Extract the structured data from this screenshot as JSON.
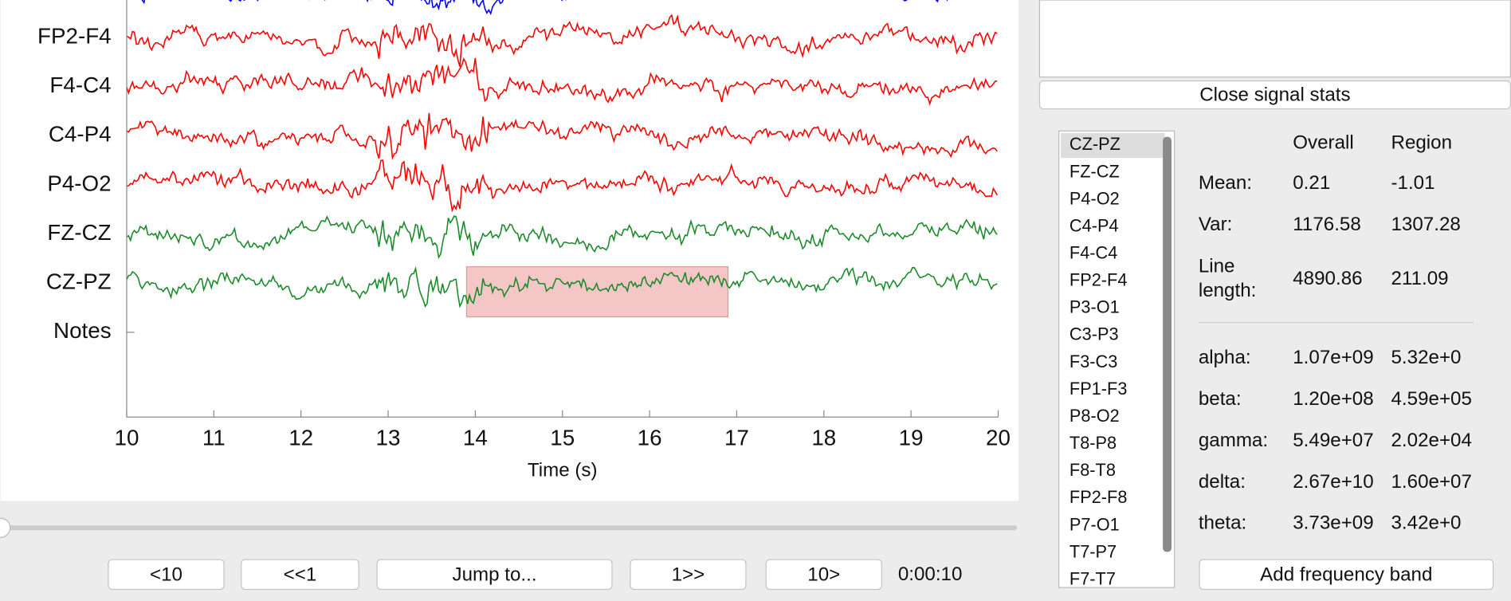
{
  "plot": {
    "channels": [
      {
        "name": "FP2-F4",
        "color": "#ff0000"
      },
      {
        "name": "F4-C4",
        "color": "#ff0000"
      },
      {
        "name": "C4-P4",
        "color": "#ff0000"
      },
      {
        "name": "P4-O2",
        "color": "#ff0000"
      },
      {
        "name": "FZ-CZ",
        "color": "#1a8a2a"
      },
      {
        "name": "CZ-PZ",
        "color": "#1a8a2a"
      },
      {
        "name": "Notes",
        "color": null
      }
    ],
    "top_trace_color": "#0000ff",
    "xlabel": "Time (s)",
    "xlim": [
      10,
      20
    ],
    "xticks": [
      10,
      11,
      12,
      13,
      14,
      15,
      16,
      17,
      18,
      19,
      20
    ],
    "region": [
      13.9,
      16.9
    ],
    "region_color": "#f4c6c6"
  },
  "nav": {
    "buttons": [
      "<10",
      "<<1",
      "Jump to...",
      "1>>",
      "10>"
    ],
    "time": "0:00:10"
  },
  "stats_panel": {
    "close_button": "Close signal stats",
    "channel_list": [
      "CZ-PZ",
      "FZ-CZ",
      "P4-O2",
      "C4-P4",
      "F4-C4",
      "FP2-F4",
      "P3-O1",
      "C3-P3",
      "F3-C3",
      "FP1-F3",
      "P8-O2",
      "T8-P8",
      "F8-T8",
      "FP2-F8",
      "P7-O1",
      "T7-P7",
      "F7-T7"
    ],
    "headers": [
      "Overall",
      "Region"
    ],
    "rows": [
      {
        "label": [
          "Mean:"
        ],
        "overall": "0.21",
        "region": "-1.01"
      },
      {
        "label": [
          "Var:"
        ],
        "overall": "1176.58",
        "region": "1307.28"
      },
      {
        "label": [
          "Line",
          "length:"
        ],
        "overall": "4890.86",
        "region": "211.09"
      }
    ],
    "band_rows": [
      {
        "label": [
          "alpha:"
        ],
        "overall": "1.07e+09",
        "region": "5.32e+0"
      },
      {
        "label": [
          "beta:"
        ],
        "overall": "1.20e+08",
        "region": "4.59e+05"
      },
      {
        "label": [
          "gamma:"
        ],
        "overall": "5.49e+07",
        "region": "2.02e+04"
      },
      {
        "label": [
          "delta:"
        ],
        "overall": "2.67e+10",
        "region": "1.60e+07"
      },
      {
        "label": [
          "theta:"
        ],
        "overall": "3.73e+09",
        "region": "3.42e+0"
      }
    ],
    "add_band_button": "Add frequency band"
  }
}
